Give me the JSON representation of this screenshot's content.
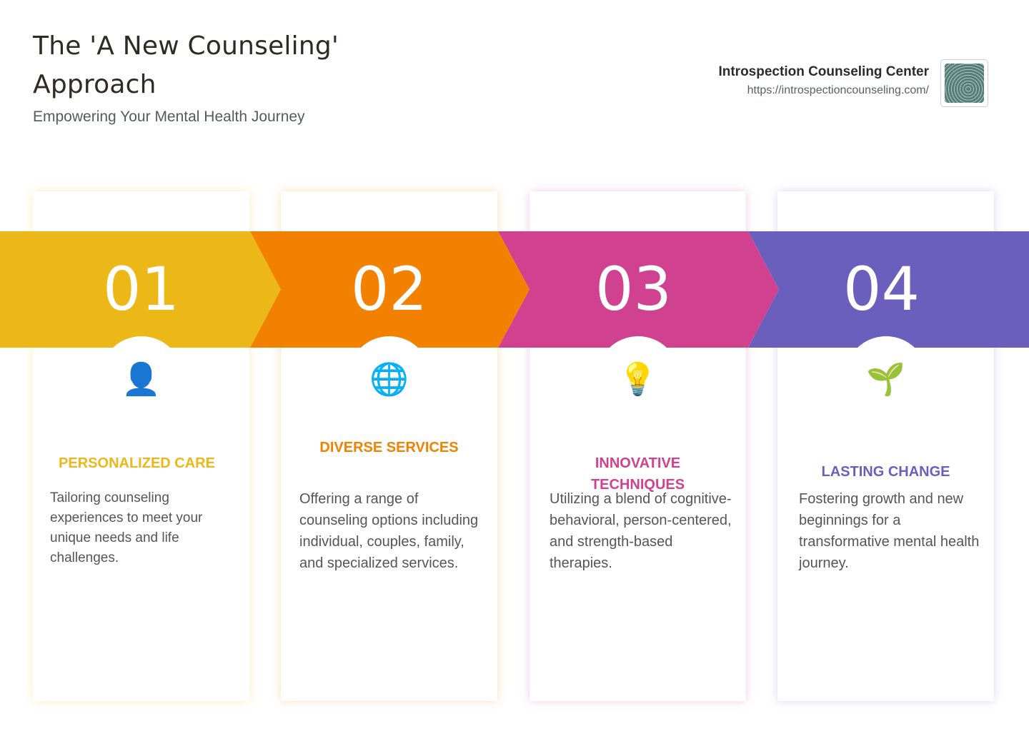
{
  "header": {
    "title": "The 'A New Counseling' Approach",
    "subtitle": "Empowering Your Mental Health Journey"
  },
  "brand": {
    "name": "Introspection Counseling Center",
    "url": "https://introspectioncounseling.com/"
  },
  "steps": [
    {
      "number": "01",
      "icon": "person-silhouette-icon",
      "glyph": "👤",
      "title": "PERSONALIZED CARE",
      "text": "Tailoring counseling experiences to meet your unique needs and life challenges.",
      "color": "#EBB817"
    },
    {
      "number": "02",
      "icon": "globe-icon",
      "glyph": "🌐",
      "title": "DIVERSE SERVICES",
      "text": "Offering a range of counseling options including individual, couples, family, and specialized services.",
      "color": "#F28100"
    },
    {
      "number": "03",
      "icon": "lightbulb-icon",
      "glyph": "💡",
      "title": "INNOVATIVE TECHNIQUES",
      "text": "Utilizing a blend of cognitive-behavioral, person-centered, and strength-based therapies.",
      "color": "#D04290"
    },
    {
      "number": "04",
      "icon": "seedling-icon",
      "glyph": "🌱",
      "title": "LASTING CHANGE",
      "text": "Fostering growth and new beginnings for a transformative mental health journey.",
      "color": "#6B5FBD"
    }
  ]
}
